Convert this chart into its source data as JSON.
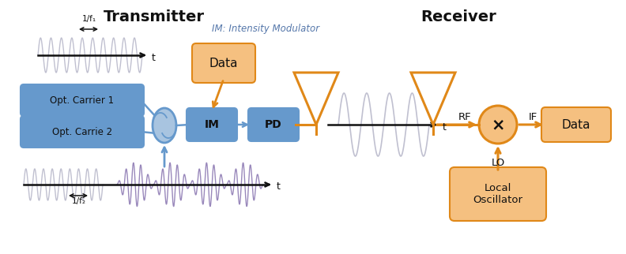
{
  "title_transmitter": "Transmitter",
  "title_receiver": "Receiver",
  "im_label": "IM: Intensity Modulator",
  "box_color_blue": "#6699CC",
  "box_color_blue_fill": "#A8C4E0",
  "box_color_orange": "#F0A040",
  "box_color_orange_light": "#F5C080",
  "wave_color_light": "#C0C0D0",
  "wave_color_dark": "#9988BB",
  "arrow_color_orange": "#E08818",
  "line_color_black": "#111111",
  "bg_color": "#FFFFFF",
  "labels": {
    "opt_carrier1": "Opt. Carrier 1",
    "opt_carrier2": "Opt. Carrie 2",
    "im": "IM",
    "pd": "PD",
    "data_tx": "Data",
    "data_rx": "Data",
    "rf": "RF",
    "lo": "LO",
    "if_label": "IF",
    "local_osc": "Local\nOscillator",
    "t_upper": "t",
    "t_lower": "t",
    "t_rx": "t",
    "freq1": "1/f₁",
    "freq2": "1/f₂",
    "x_symbol": "×"
  }
}
